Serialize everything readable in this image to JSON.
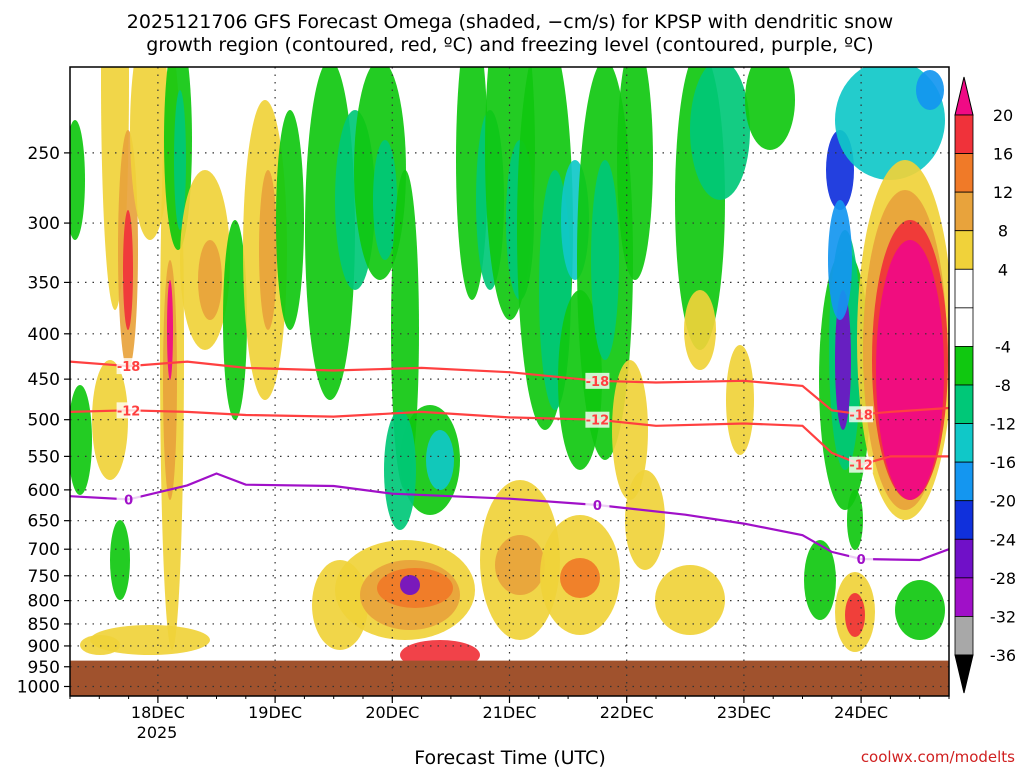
{
  "chart_data": {
    "type": "heatmap",
    "title": "2025121706 GFS Forecast Omega (shaded, −cm/s) for KPSP with dendritic snow growth region (contoured, red, ºC) and freezing level (contoured, purple, ºC)",
    "title_lines": [
      "2025121706 GFS Forecast Omega (shaded, −cm/s) for KPSP with dendritic snow",
      "growth region (contoured, red, ºC) and freezing level (contoured, purple, ºC)"
    ],
    "xlabel": "Forecast Time (UTC)",
    "ylabel": "",
    "credit": "coolwx.com/modelts",
    "x_ticks": [
      "18DEC",
      "19DEC",
      "20DEC",
      "21DEC",
      "22DEC",
      "23DEC",
      "24DEC"
    ],
    "x_year": "2025",
    "xlim": [
      "2025-12-17T06:00Z",
      "2025-12-24T18:00Z"
    ],
    "y_ticks": [
      250,
      300,
      350,
      400,
      450,
      500,
      550,
      600,
      650,
      700,
      750,
      800,
      850,
      900,
      950,
      1000
    ],
    "ylim": [
      1025,
      200
    ],
    "y_scale": "log-pressure",
    "grid": true,
    "colorbar": {
      "ticks": [
        20,
        16,
        12,
        8,
        4,
        -4,
        -8,
        -12,
        -16,
        -20,
        -24,
        -28,
        -32,
        -36
      ],
      "colors": [
        "#f00a85",
        "#f0323a",
        "#f07a28",
        "#e8a33c",
        "#f0d23a",
        "#ffffff",
        "#ffffff",
        "#10c810",
        "#00c878",
        "#10c8c8",
        "#1496f0",
        "#1030dc",
        "#7010c8",
        "#a010c8",
        "#a8a8a8",
        "#000000"
      ],
      "bounds": [
        24,
        20,
        16,
        12,
        8,
        4,
        0,
        -4,
        -8,
        -12,
        -16,
        -20,
        -24,
        -28,
        -32,
        -36,
        -40
      ]
    },
    "surface_pressure": 935,
    "contours": [
      {
        "name": "-18",
        "color": "#ff4040",
        "x": [
          "2025-12-17T06:00Z",
          "2025-12-17T18:00Z",
          "2025-12-18T06:00Z",
          "2025-12-18T18:00Z",
          "2025-12-19T12:00Z",
          "2025-12-20T06:00Z",
          "2025-12-21T00:00Z",
          "2025-12-21T18:00Z",
          "2025-12-22T06:00Z",
          "2025-12-23T00:00Z",
          "2025-12-23T12:00Z",
          "2025-12-23T18:00Z",
          "2025-12-24T00:00Z",
          "2025-12-24T06:00Z",
          "2025-12-24T18:00Z"
        ],
        "y": [
          430,
          435,
          430,
          437,
          440,
          437,
          442,
          452,
          454,
          452,
          458,
          488,
          493,
          490,
          485
        ]
      },
      {
        "name": "-12",
        "color": "#ff4040",
        "x": [
          "2025-12-17T06:00Z",
          "2025-12-17T18:00Z",
          "2025-12-18T06:00Z",
          "2025-12-18T18:00Z",
          "2025-12-19T12:00Z",
          "2025-12-20T06:00Z",
          "2025-12-21T00:00Z",
          "2025-12-21T18:00Z",
          "2025-12-22T06:00Z",
          "2025-12-23T00:00Z",
          "2025-12-23T12:00Z",
          "2025-12-23T18:00Z",
          "2025-12-24T00:00Z",
          "2025-12-24T06:00Z",
          "2025-12-24T18:00Z"
        ],
        "y": [
          490,
          488,
          490,
          494,
          496,
          490,
          497,
          500,
          508,
          505,
          508,
          545,
          562,
          550,
          550
        ]
      },
      {
        "name": "0",
        "color": "#a010c8",
        "x": [
          "2025-12-17T06:00Z",
          "2025-12-17T18:00Z",
          "2025-12-18T06:00Z",
          "2025-12-18T12:00Z",
          "2025-12-18T18:00Z",
          "2025-12-19T12:00Z",
          "2025-12-20T00:00Z",
          "2025-12-21T00:00Z",
          "2025-12-21T18:00Z",
          "2025-12-22T12:00Z",
          "2025-12-23T00:00Z",
          "2025-12-23T12:00Z",
          "2025-12-23T18:00Z",
          "2025-12-24T00:00Z",
          "2025-12-24T12:00Z",
          "2025-12-24T18:00Z"
        ],
        "y": [
          610,
          615,
          593,
          575,
          592,
          594,
          606,
          614,
          624,
          640,
          655,
          675,
          705,
          718,
          720,
          700
        ]
      }
    ]
  }
}
